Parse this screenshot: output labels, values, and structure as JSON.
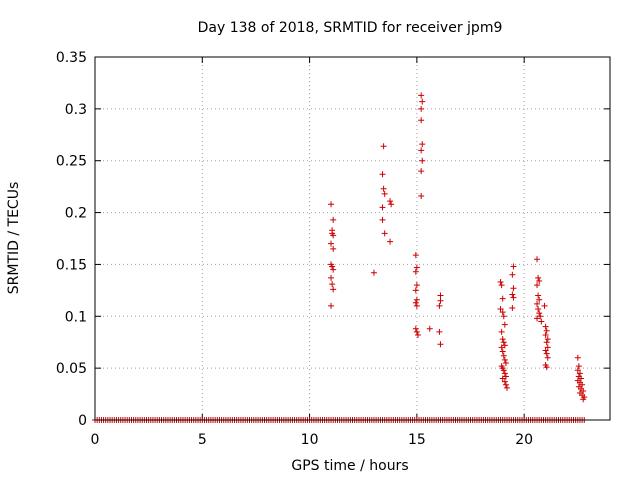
{
  "chart_data": {
    "type": "scatter",
    "title": "Day 138 of 2018, SRMTID for receiver jpm9",
    "xlabel": "GPS time / hours",
    "ylabel": "SRMTID / TECUs",
    "xlim": [
      0,
      24
    ],
    "ylim": [
      0,
      0.35
    ],
    "x_ticks": [
      0,
      5,
      10,
      15,
      20
    ],
    "x_tick_labels": [
      "0",
      "5",
      "10",
      "15",
      "20"
    ],
    "y_ticks": [
      0,
      0.05,
      0.1,
      0.15,
      0.2,
      0.25,
      0.3,
      0.35
    ],
    "y_tick_labels": [
      "0",
      "0.05",
      "0.1",
      "0.15",
      "0.2",
      "0.25",
      "0.3",
      "0.35"
    ],
    "grid": true,
    "marker": "plus",
    "marker_color": "#cc0000",
    "series": [
      {
        "name": "jpm9",
        "points": [
          [
            11.0,
            0.208
          ],
          [
            11.05,
            0.183
          ],
          [
            11.1,
            0.193
          ],
          [
            11.05,
            0.18
          ],
          [
            11.1,
            0.178
          ],
          [
            11.0,
            0.17
          ],
          [
            11.1,
            0.165
          ],
          [
            11.0,
            0.15
          ],
          [
            11.05,
            0.148
          ],
          [
            11.1,
            0.145
          ],
          [
            11.0,
            0.137
          ],
          [
            11.05,
            0.131
          ],
          [
            11.1,
            0.126
          ],
          [
            11.0,
            0.11
          ],
          [
            13.0,
            0.142
          ],
          [
            13.45,
            0.264
          ],
          [
            13.4,
            0.237
          ],
          [
            13.45,
            0.223
          ],
          [
            13.5,
            0.218
          ],
          [
            13.4,
            0.205
          ],
          [
            13.75,
            0.211
          ],
          [
            13.8,
            0.208
          ],
          [
            13.4,
            0.193
          ],
          [
            13.5,
            0.18
          ],
          [
            13.75,
            0.172
          ],
          [
            15.2,
            0.313
          ],
          [
            15.25,
            0.307
          ],
          [
            15.2,
            0.3
          ],
          [
            15.2,
            0.289
          ],
          [
            15.25,
            0.266
          ],
          [
            15.2,
            0.26
          ],
          [
            15.25,
            0.25
          ],
          [
            15.2,
            0.24
          ],
          [
            15.2,
            0.216
          ],
          [
            14.95,
            0.159
          ],
          [
            15.0,
            0.147
          ],
          [
            14.95,
            0.143
          ],
          [
            15.0,
            0.13
          ],
          [
            14.95,
            0.125
          ],
          [
            15.0,
            0.116
          ],
          [
            14.95,
            0.113
          ],
          [
            15.0,
            0.11
          ],
          [
            14.95,
            0.088
          ],
          [
            15.0,
            0.085
          ],
          [
            15.05,
            0.082
          ],
          [
            15.6,
            0.088
          ],
          [
            16.1,
            0.12
          ],
          [
            16.1,
            0.115
          ],
          [
            16.05,
            0.11
          ],
          [
            16.05,
            0.085
          ],
          [
            16.1,
            0.073
          ],
          [
            18.9,
            0.133
          ],
          [
            18.95,
            0.13
          ],
          [
            19.0,
            0.117
          ],
          [
            18.9,
            0.107
          ],
          [
            19.0,
            0.104
          ],
          [
            19.05,
            0.1
          ],
          [
            19.1,
            0.092
          ],
          [
            18.95,
            0.085
          ],
          [
            19.0,
            0.078
          ],
          [
            19.05,
            0.075
          ],
          [
            19.1,
            0.072
          ],
          [
            18.95,
            0.07
          ],
          [
            19.0,
            0.066
          ],
          [
            19.05,
            0.062
          ],
          [
            19.1,
            0.058
          ],
          [
            19.15,
            0.055
          ],
          [
            18.95,
            0.052
          ],
          [
            19.0,
            0.05
          ],
          [
            19.05,
            0.048
          ],
          [
            19.1,
            0.045
          ],
          [
            19.15,
            0.042
          ],
          [
            19.0,
            0.04
          ],
          [
            19.1,
            0.037
          ],
          [
            19.15,
            0.034
          ],
          [
            19.2,
            0.031
          ],
          [
            19.5,
            0.148
          ],
          [
            19.45,
            0.14
          ],
          [
            19.5,
            0.127
          ],
          [
            19.45,
            0.121
          ],
          [
            19.5,
            0.118
          ],
          [
            19.45,
            0.108
          ],
          [
            20.6,
            0.155
          ],
          [
            20.65,
            0.137
          ],
          [
            20.7,
            0.134
          ],
          [
            20.6,
            0.13
          ],
          [
            20.65,
            0.12
          ],
          [
            20.7,
            0.116
          ],
          [
            20.6,
            0.112
          ],
          [
            20.65,
            0.107
          ],
          [
            20.7,
            0.103
          ],
          [
            20.75,
            0.1
          ],
          [
            20.6,
            0.098
          ],
          [
            20.8,
            0.095
          ],
          [
            20.95,
            0.11
          ],
          [
            21.0,
            0.09
          ],
          [
            21.05,
            0.086
          ],
          [
            21.0,
            0.082
          ],
          [
            21.1,
            0.078
          ],
          [
            21.05,
            0.075
          ],
          [
            21.1,
            0.07
          ],
          [
            21.0,
            0.067
          ],
          [
            21.05,
            0.064
          ],
          [
            21.1,
            0.06
          ],
          [
            21.0,
            0.053
          ],
          [
            21.05,
            0.051
          ],
          [
            22.5,
            0.06
          ],
          [
            22.55,
            0.052
          ],
          [
            22.5,
            0.048
          ],
          [
            22.6,
            0.045
          ],
          [
            22.55,
            0.042
          ],
          [
            22.65,
            0.04
          ],
          [
            22.5,
            0.038
          ],
          [
            22.6,
            0.036
          ],
          [
            22.7,
            0.034
          ],
          [
            22.55,
            0.032
          ],
          [
            22.65,
            0.03
          ],
          [
            22.75,
            0.028
          ],
          [
            22.6,
            0.026
          ],
          [
            22.7,
            0.024
          ],
          [
            22.8,
            0.022
          ],
          [
            22.75,
            0.02
          ]
        ],
        "zero_baseline": {
          "y": 0,
          "x_start": 0.0,
          "x_end": 22.85,
          "step": 0.1
        }
      }
    ]
  }
}
